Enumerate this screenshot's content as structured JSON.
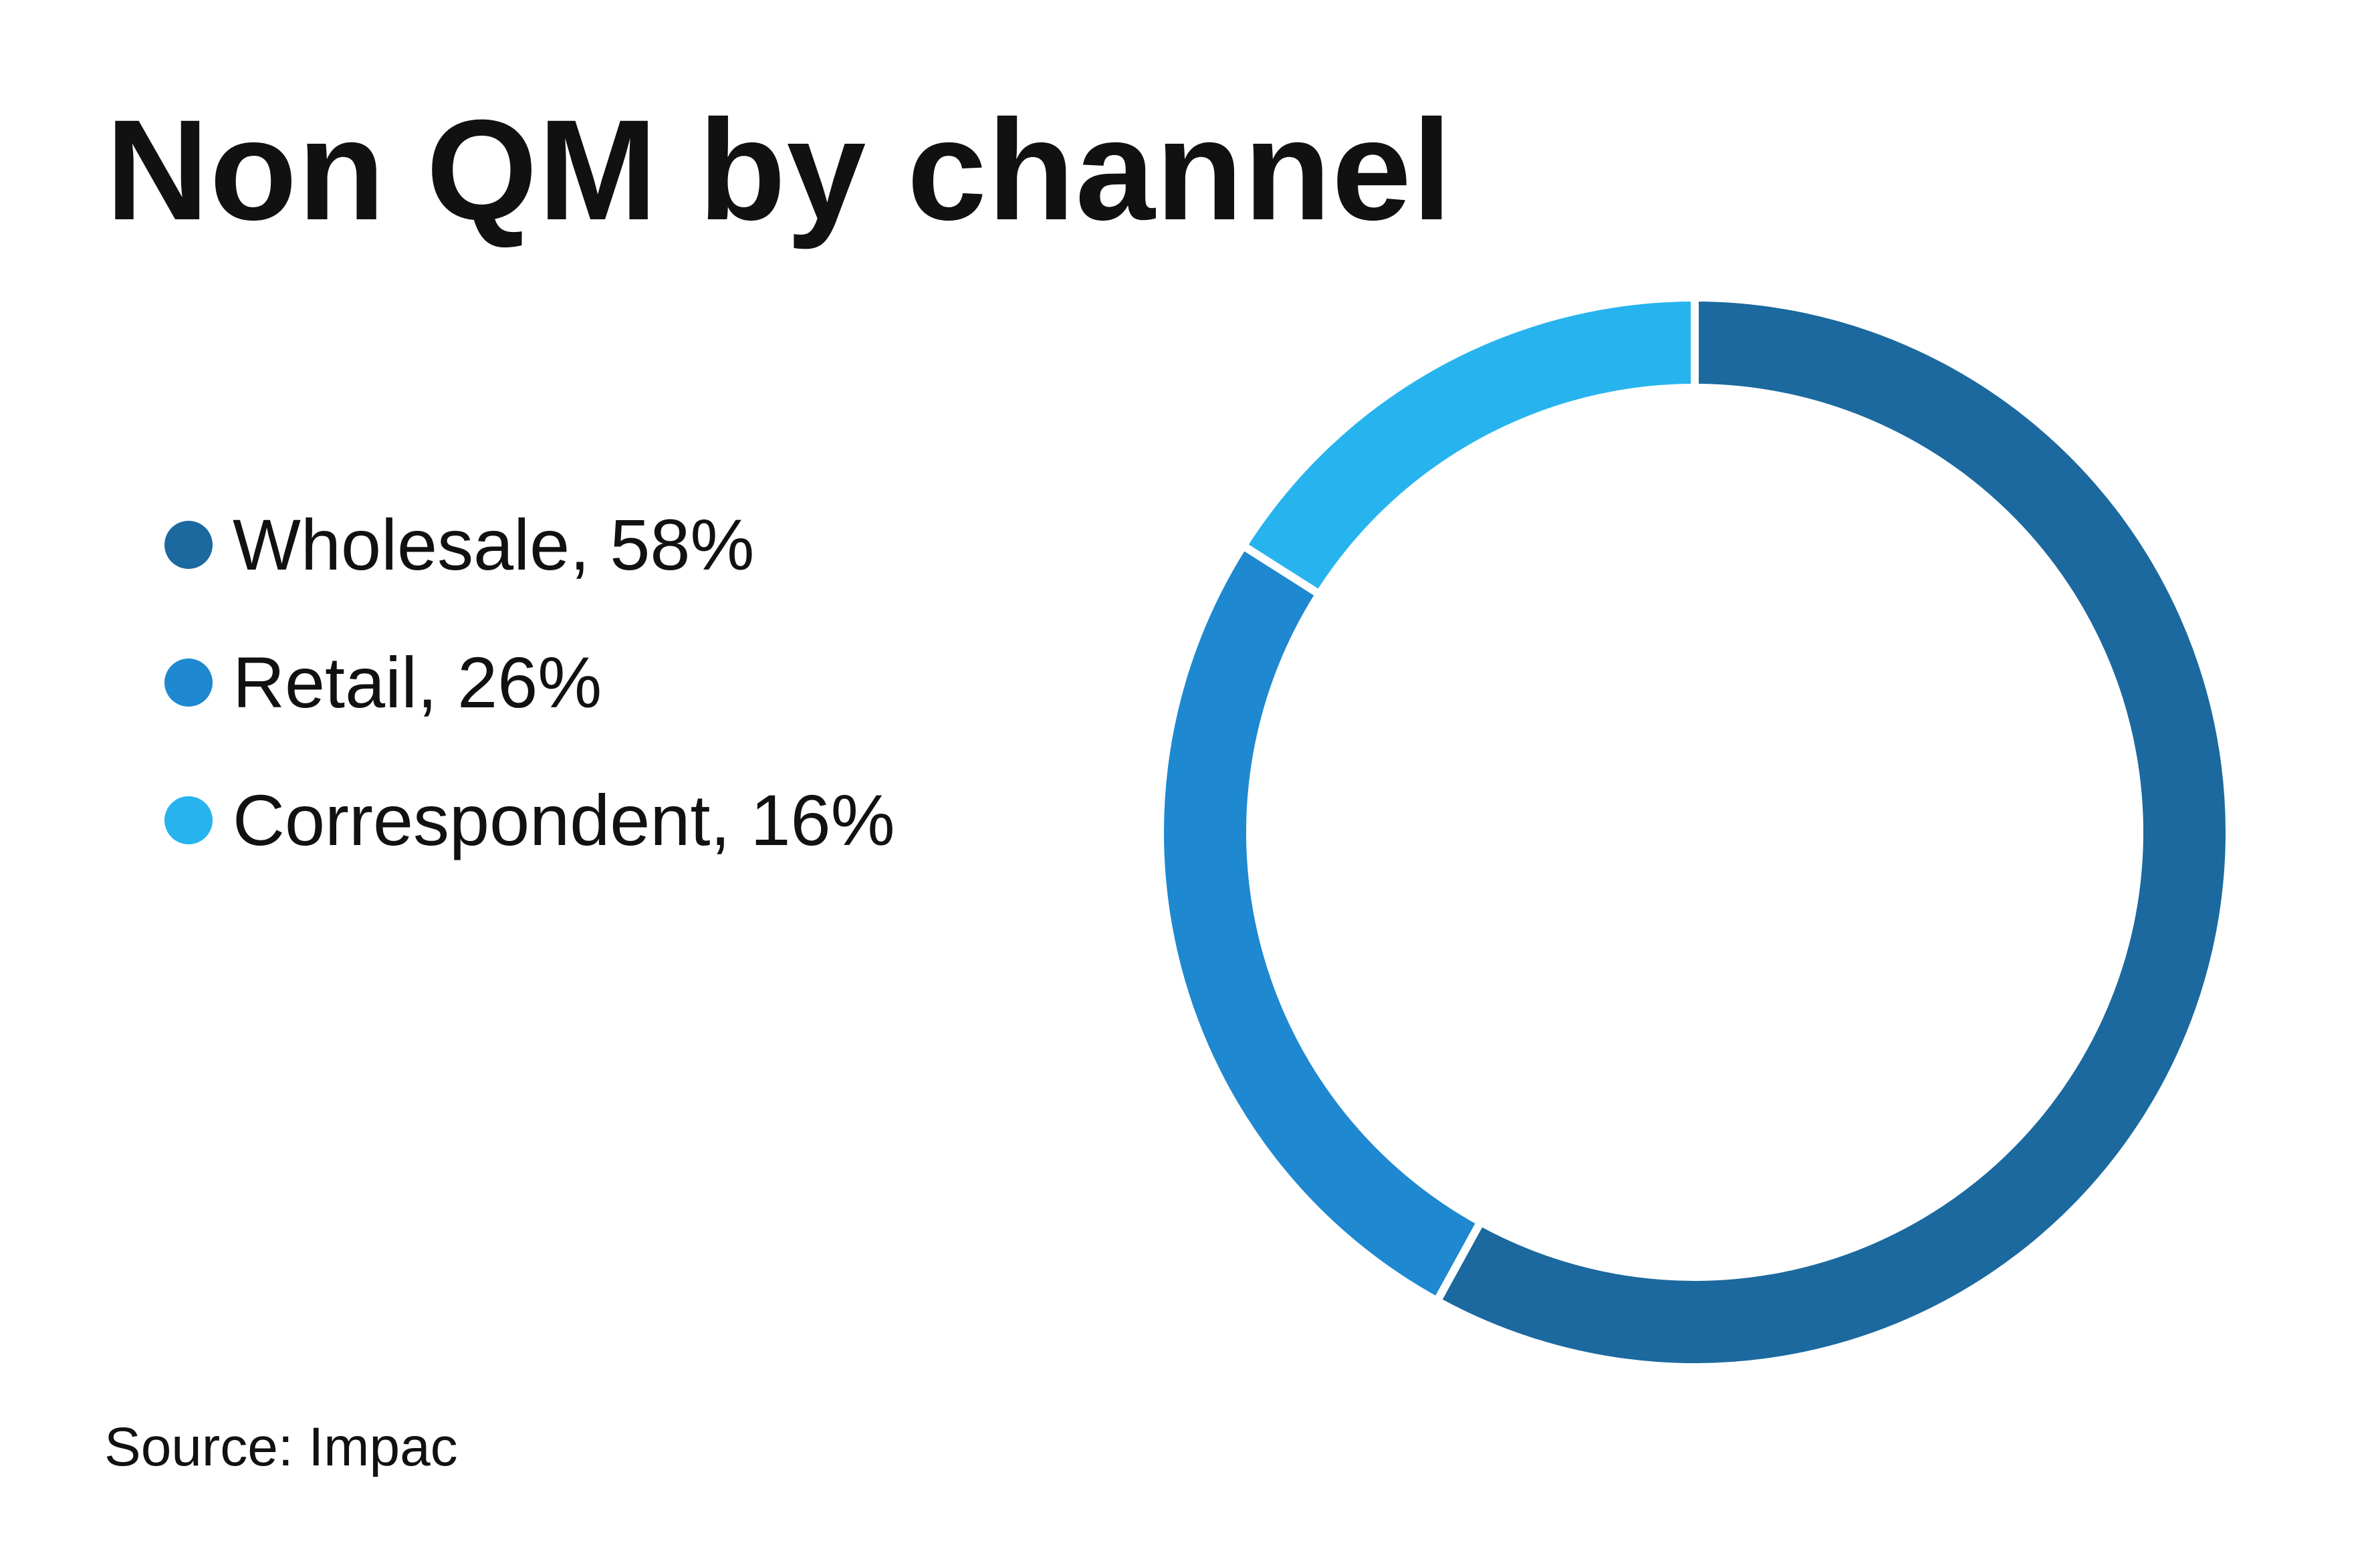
{
  "title": "Non QM by channel",
  "source": "Source: Impac",
  "chart_data": {
    "type": "pie",
    "variant": "donut",
    "title": "Non QM by channel",
    "legend_placement": "left",
    "series": [
      {
        "name": "Wholesale",
        "label": "Wholesale, 58%",
        "value": 58,
        "color": "#1b699f"
      },
      {
        "name": "Retail",
        "label": "Retail, 26%",
        "value": 26,
        "color": "#1e88d0"
      },
      {
        "name": "Correspondent",
        "label": "Correspondent, 16%",
        "value": 16,
        "color": "#27b4ee"
      }
    ]
  }
}
